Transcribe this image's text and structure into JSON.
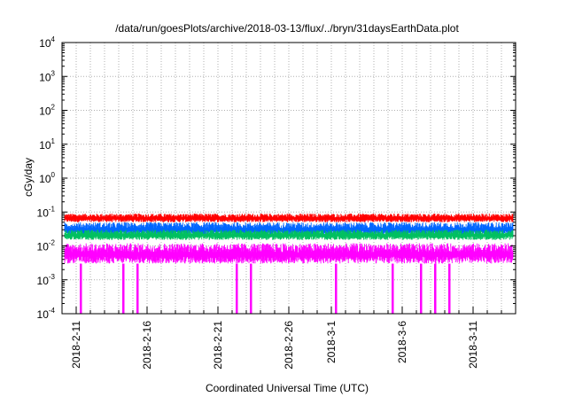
{
  "chart_data": {
    "type": "line",
    "title": "/data/run/goesPlots/archive/2018-03-13/flux/../bryn/31daysEarthData.plot",
    "xlabel": "Coordinated Universal Time (UTC)",
    "ylabel": "cGy/day",
    "yscale": "log",
    "ylim": [
      0.0001,
      10000
    ],
    "xlim": [
      "2018-02-10",
      "2018-03-14"
    ],
    "x_tick_labels": [
      "2018-2-11",
      "2018-2-16",
      "2018-2-21",
      "2018-2-26",
      "2018-3-1",
      "2018-3-6",
      "2018-3-11"
    ],
    "x_ticks": [
      "2018-02-11",
      "2018-02-16",
      "2018-02-21",
      "2018-02-26",
      "2018-03-01",
      "2018-03-06",
      "2018-03-11"
    ],
    "y_ticks": [
      {
        "base": "10",
        "exp": "-4",
        "value": 0.0001
      },
      {
        "base": "10",
        "exp": "-3",
        "value": 0.001
      },
      {
        "base": "10",
        "exp": "-2",
        "value": 0.01
      },
      {
        "base": "10",
        "exp": "-1",
        "value": 0.1
      },
      {
        "base": "10",
        "exp": "0",
        "value": 1
      },
      {
        "base": "10",
        "exp": "1",
        "value": 10
      },
      {
        "base": "10",
        "exp": "2",
        "value": 100
      },
      {
        "base": "10",
        "exp": "3",
        "value": 1000
      },
      {
        "base": "10",
        "exp": "4",
        "value": 10000
      }
    ],
    "grid": true,
    "legend": "none",
    "series": [
      {
        "color": "#ff0000",
        "values_typical_range": [
          0.05,
          0.09
        ]
      },
      {
        "color": "#0066ff",
        "values_typical_range": [
          0.02,
          0.05
        ]
      },
      {
        "color": "#00c060",
        "values_typical_range": [
          0.015,
          0.03
        ]
      },
      {
        "color": "#ff00ff",
        "values_typical_range": [
          0.003,
          0.012
        ],
        "dropouts_to_min": [
          "2018-02-11",
          "2018-02-14",
          "2018-02-15",
          "2018-02-22",
          "2018-02-23",
          "2018-03-01",
          "2018-03-05",
          "2018-03-07",
          "2018-03-08",
          "2018-03-09"
        ]
      }
    ]
  }
}
